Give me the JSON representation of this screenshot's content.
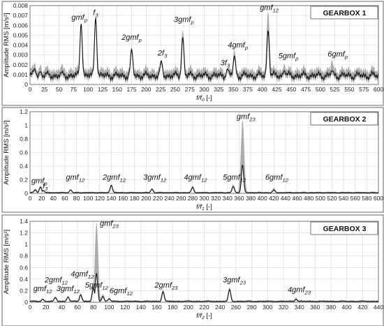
{
  "colors": {
    "signal": "#111111",
    "band": "#9e9e9e",
    "frame": "#666666",
    "grid": "#d6d6d6"
  },
  "chart_data": [
    {
      "type": "line",
      "title": "GEARBOX 1",
      "xlabel_main": "f/f",
      "xlabel_sub": "0",
      "xlabel_unit": "[-]",
      "ylabel": "Amplitude RMS [m/s²]",
      "xlim": [
        0,
        600
      ],
      "ylim": [
        0,
        0.008
      ],
      "grid": true,
      "xticks": [
        "0",
        "25",
        "50",
        "75",
        "100",
        "125",
        "150",
        "175",
        "200",
        "225",
        "250",
        "275",
        "300",
        "325",
        "350",
        "375",
        "400",
        "425",
        "450",
        "475",
        "500",
        "525",
        "550",
        "575",
        "600"
      ],
      "yticks": [
        "0",
        "0.001",
        "0.002",
        "0.003",
        "0.004",
        "0.005",
        "0.006",
        "0.007",
        "0.008"
      ],
      "baseline": 0.0009,
      "band_halfwidth": 0.00045,
      "peaks": [
        {
          "x": 8,
          "y": 0.0016,
          "band": 0.0022
        },
        {
          "x": 18,
          "y": 0.0013,
          "band": 0.002
        },
        {
          "x": 30,
          "y": 0.0011,
          "band": 0.0019
        },
        {
          "x": 55,
          "y": 0.0012,
          "band": 0.0021
        },
        {
          "x": 88,
          "y": 0.0062,
          "band": 0.0062
        },
        {
          "x": 113,
          "y": 0.0068,
          "band": 0.0068
        },
        {
          "x": 175,
          "y": 0.0036,
          "band": 0.0038
        },
        {
          "x": 226,
          "y": 0.0024,
          "band": 0.0025
        },
        {
          "x": 263,
          "y": 0.0048,
          "band": 0.0055
        },
        {
          "x": 340,
          "y": 0.0016,
          "band": 0.0016
        },
        {
          "x": 352,
          "y": 0.0029,
          "band": 0.0035
        },
        {
          "x": 410,
          "y": 0.0055,
          "band": 0.0074
        },
        {
          "x": 438,
          "y": 0.0014,
          "band": 0.0021
        },
        {
          "x": 520,
          "y": 0.0014,
          "band": 0.0025
        }
      ],
      "annotations": [
        {
          "base": "gmf",
          "sub": "p",
          "x": 85,
          "y": 0.0064
        },
        {
          "base": "f",
          "sub": "3",
          "x": 113,
          "y": 0.0069
        },
        {
          "base": "2gmf",
          "sub": "p",
          "x": 175,
          "y": 0.0044
        },
        {
          "base": "2f",
          "sub": "3",
          "x": 228,
          "y": 0.0028
        },
        {
          "base": "3gmf",
          "sub": "p",
          "x": 265,
          "y": 0.0062
        },
        {
          "base": "3f",
          "sub": "3",
          "x": 336,
          "y": 0.0018
        },
        {
          "base": "4gmf",
          "sub": "p",
          "x": 358,
          "y": 0.0036
        },
        {
          "base": "gmf",
          "sub": "12",
          "x": 412,
          "y": 0.0074
        },
        {
          "base": "5gmf",
          "sub": "p",
          "x": 445,
          "y": 0.0025
        },
        {
          "base": "6gmf",
          "sub": "p",
          "x": 530,
          "y": 0.0027
        }
      ]
    },
    {
      "type": "line",
      "title": "GEARBOX 2",
      "xlabel_main": "f/f",
      "xlabel_sub": "1",
      "xlabel_unit": "[-]",
      "ylabel": "Amplitude RMS [m/s²]",
      "xlim": [
        0,
        600
      ],
      "ylim": [
        0,
        1.2
      ],
      "grid": true,
      "xticks": [
        "0",
        "20",
        "40",
        "60",
        "80",
        "100",
        "120",
        "140",
        "160",
        "180",
        "200",
        "220",
        "240",
        "260",
        "280",
        "300",
        "320",
        "340",
        "360",
        "380",
        "400",
        "420",
        "440",
        "460",
        "480",
        "500",
        "520",
        "540",
        "560",
        "580",
        "600"
      ],
      "yticks": [
        "0",
        "0.2",
        "0.4",
        "0.6",
        "0.8",
        "1",
        "1.2"
      ],
      "baseline": 0.01,
      "band_halfwidth": 0.008,
      "peaks": [
        {
          "x": 9,
          "y": 0.05,
          "band": 0.07
        },
        {
          "x": 18,
          "y": 0.09,
          "band": 0.11
        },
        {
          "x": 23,
          "y": 0.04,
          "band": 0.05
        },
        {
          "x": 70,
          "y": 0.05,
          "band": 0.06
        },
        {
          "x": 140,
          "y": 0.12,
          "band": 0.13
        },
        {
          "x": 210,
          "y": 0.06,
          "band": 0.08
        },
        {
          "x": 280,
          "y": 0.09,
          "band": 0.11
        },
        {
          "x": 350,
          "y": 0.1,
          "band": 0.13
        },
        {
          "x": 366,
          "y": 0.42,
          "band": 1.08
        },
        {
          "x": 420,
          "y": 0.05,
          "band": 0.08
        }
      ],
      "annotations": [
        {
          "base": "gmf",
          "sub": "p",
          "x": 16,
          "y": 0.13
        },
        {
          "base": "f",
          "sub": "3",
          "x": 26,
          "y": 0.05
        },
        {
          "base": "gmf",
          "sub": "12",
          "x": 78,
          "y": 0.18
        },
        {
          "base": "2gmf",
          "sub": "12",
          "x": 145,
          "y": 0.18
        },
        {
          "base": "3gmf",
          "sub": "12",
          "x": 215,
          "y": 0.18
        },
        {
          "base": "4gmf",
          "sub": "12",
          "x": 285,
          "y": 0.18
        },
        {
          "base": "5gmf",
          "sub": "12",
          "x": 352,
          "y": 0.18
        },
        {
          "base": "gmf",
          "sub": "23",
          "x": 372,
          "y": 1.07
        },
        {
          "base": "6gmf",
          "sub": "12",
          "x": 425,
          "y": 0.18
        }
      ]
    },
    {
      "type": "line",
      "title": "GEARBOX 3",
      "xlabel_main": "f/f",
      "xlabel_sub": "2",
      "xlabel_unit": "[-]",
      "ylabel": "Amplitude RMS [m/s²]",
      "xlim": [
        0,
        440
      ],
      "ylim": [
        0,
        1.4
      ],
      "grid": true,
      "xticks": [
        "0",
        "20",
        "40",
        "60",
        "80",
        "100",
        "120",
        "140",
        "160",
        "180",
        "200",
        "220",
        "240",
        "260",
        "280",
        "300",
        "320",
        "340",
        "360",
        "380",
        "400",
        "420",
        "440"
      ],
      "yticks": [
        "0",
        "0.2",
        "0.4",
        "0.6",
        "0.8",
        "1",
        "1.2",
        "1.4"
      ],
      "baseline": 0.015,
      "band_halfwidth": 0.012,
      "peaks": [
        {
          "x": 16,
          "y": 0.05,
          "band": 0.07
        },
        {
          "x": 32,
          "y": 0.08,
          "band": 0.1
        },
        {
          "x": 48,
          "y": 0.09,
          "band": 0.11
        },
        {
          "x": 64,
          "y": 0.13,
          "band": 0.15
        },
        {
          "x": 80,
          "y": 0.25,
          "band": 0.3
        },
        {
          "x": 84,
          "y": 0.5,
          "band": 1.38
        },
        {
          "x": 92,
          "y": 0.1,
          "band": 0.14
        },
        {
          "x": 100,
          "y": 0.06,
          "band": 0.08
        },
        {
          "x": 168,
          "y": 0.18,
          "band": 0.22
        },
        {
          "x": 252,
          "y": 0.22,
          "band": 0.26
        },
        {
          "x": 336,
          "y": 0.05,
          "band": 0.08
        }
      ],
      "annotations": [
        {
          "base": "gmf",
          "sub": "12",
          "x": 16,
          "y": 0.17
        },
        {
          "base": "2gmf",
          "sub": "12",
          "x": 33,
          "y": 0.32
        },
        {
          "base": "3gmf",
          "sub": "12",
          "x": 48,
          "y": 0.17
        },
        {
          "base": "4gmf",
          "sub": "12",
          "x": 66,
          "y": 0.42
        },
        {
          "base": "5gmf",
          "sub": "12",
          "x": 84,
          "y": 0.23
        },
        {
          "base": "gmf",
          "sub": "23",
          "x": 100,
          "y": 1.3
        },
        {
          "base": "6gmf",
          "sub": "12",
          "x": 115,
          "y": 0.13
        },
        {
          "base": "2gmf",
          "sub": "23",
          "x": 172,
          "y": 0.23
        },
        {
          "base": "3gmf",
          "sub": "23",
          "x": 258,
          "y": 0.32
        },
        {
          "base": "4gmf",
          "sub": "23",
          "x": 340,
          "y": 0.15
        }
      ]
    }
  ]
}
